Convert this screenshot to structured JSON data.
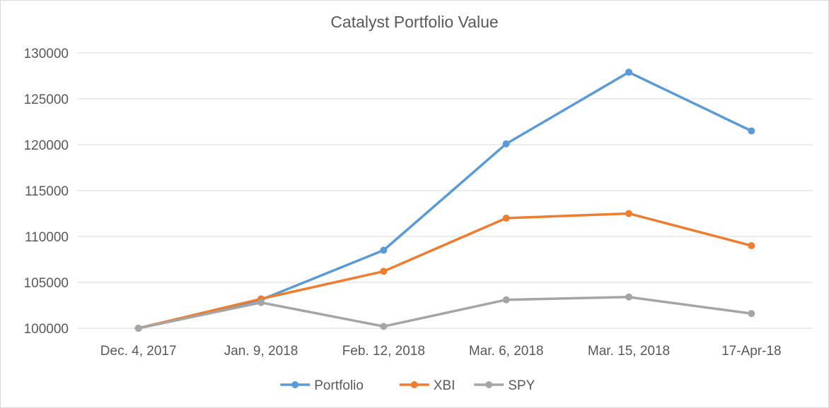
{
  "chart_data": {
    "type": "line",
    "title": "Catalyst Portfolio Value",
    "xlabel": "",
    "ylabel": "",
    "categories": [
      "Dec. 4, 2017",
      "Jan. 9, 2018",
      "Feb. 12, 2018",
      "Mar. 6, 2018",
      "Mar. 15, 2018",
      "17-Apr-18"
    ],
    "ylim": [
      100000,
      130000
    ],
    "yticks": [
      100000,
      105000,
      110000,
      115000,
      120000,
      125000,
      130000
    ],
    "grid": true,
    "legend": "bottom",
    "series": [
      {
        "name": "Portfolio",
        "color": "#5b9bd5",
        "values": [
          100000,
          103100,
          108500,
          120100,
          127900,
          121500
        ]
      },
      {
        "name": "XBI",
        "color": "#ed7d31",
        "values": [
          100000,
          103200,
          106200,
          112000,
          112500,
          109000
        ]
      },
      {
        "name": "SPY",
        "color": "#a5a5a5",
        "values": [
          100000,
          102800,
          100200,
          103100,
          103400,
          101600
        ]
      }
    ]
  }
}
